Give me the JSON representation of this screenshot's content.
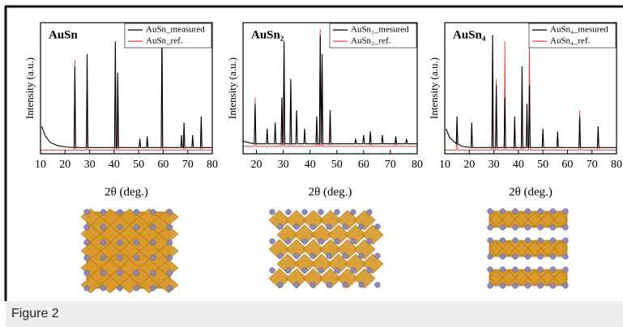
{
  "chart_data": [
    {
      "type": "line",
      "title": "AuSn",
      "x_label": "2θ (deg.)",
      "y_label": "Intensity (a.u.)",
      "xlim": [
        10,
        80
      ],
      "xticks": [
        10,
        20,
        30,
        40,
        50,
        60,
        70,
        80
      ],
      "ylim": [
        0,
        105
      ],
      "series": [
        {
          "name": "AuSn_measured",
          "color": "#000000",
          "x": [
            10.5,
            12,
            14,
            17,
            20,
            23.7,
            24,
            24.3,
            28.7,
            29,
            29.3,
            40.2,
            40.5,
            40.8,
            41.2,
            41.5,
            41.8,
            50.2,
            50.5,
            50.8,
            53.2,
            53.5,
            53.8,
            59.2,
            59.5,
            59.8,
            67.2,
            67.5,
            67.8,
            68.2,
            68.5,
            68.8,
            71.7,
            72,
            72.3,
            75.2,
            75.5,
            75.8,
            80
          ],
          "values": [
            22,
            14,
            9,
            6.5,
            5.5,
            5,
            70,
            5,
            5,
            80,
            5,
            5,
            90,
            5,
            5,
            65,
            5,
            5,
            12,
            5,
            5,
            14,
            5,
            5,
            100,
            5,
            5,
            15,
            5,
            5,
            25,
            5,
            5,
            15,
            5,
            5,
            30,
            5,
            5
          ]
        },
        {
          "name": "AuSn_ref.",
          "color": "#e8403a",
          "x": [
            10,
            23.7,
            24,
            24.3,
            28.7,
            29,
            29.3,
            40.2,
            40.5,
            40.8,
            41.2,
            41.5,
            41.8,
            59.2,
            59.5,
            59.8,
            68.2,
            68.5,
            68.8,
            75.2,
            75.5,
            75.8,
            80
          ],
          "values": [
            3,
            3,
            75,
            3,
            3,
            50,
            3,
            3,
            80,
            3,
            3,
            60,
            3,
            3,
            95,
            3,
            3,
            20,
            3,
            3,
            25,
            3,
            3
          ]
        }
      ]
    },
    {
      "type": "line",
      "title": "AuSn₂",
      "x_label": "2θ (deg.)",
      "y_label": "Intensity (a.u.)",
      "xlim": [
        15,
        80
      ],
      "xticks": [
        20,
        30,
        40,
        50,
        60,
        70,
        80
      ],
      "ylim": [
        0,
        105
      ],
      "series": [
        {
          "name": "AuSn₂_mesured",
          "color": "#000000",
          "x": [
            15,
            19.2,
            19.5,
            19.8,
            23.7,
            24,
            24.3,
            26.7,
            27,
            27.3,
            29.2,
            29.5,
            29.8,
            30.0,
            30.3,
            30.6,
            32.5,
            32.8,
            33.1,
            34.7,
            35,
            35.3,
            37.7,
            38,
            38.3,
            42.2,
            42.5,
            42.8,
            43.5,
            43.8,
            44.1,
            44.2,
            44.5,
            44.8,
            47.2,
            47.5,
            47.8,
            56.7,
            57,
            57.3,
            59.7,
            60,
            60.3,
            62.2,
            62.5,
            62.8,
            66.7,
            67,
            67.3,
            71.7,
            72,
            72.3,
            75.7,
            76,
            76.3,
            80
          ],
          "values": [
            10,
            8,
            40,
            8,
            8,
            20,
            8,
            8,
            25,
            8,
            8,
            45,
            8,
            8,
            90,
            8,
            8,
            60,
            8,
            8,
            35,
            8,
            8,
            20,
            8,
            8,
            30,
            8,
            8,
            95,
            8,
            8,
            80,
            8,
            8,
            35,
            8,
            8,
            12,
            8,
            8,
            15,
            8,
            8,
            18,
            8,
            8,
            15,
            8,
            8,
            14,
            8,
            8,
            12,
            8,
            8
          ]
        },
        {
          "name": "AuSn₂_ref.",
          "color": "#e8403a",
          "x": [
            15,
            19.2,
            19.5,
            19.8,
            29.2,
            29.5,
            29.8,
            30.0,
            30.3,
            30.6,
            32.5,
            32.8,
            33.1,
            42.2,
            42.5,
            42.8,
            43.5,
            43.8,
            44.1,
            44.2,
            44.5,
            44.8,
            47.2,
            47.5,
            47.8,
            62.2,
            62.5,
            62.8,
            71.7,
            72,
            72.3,
            80
          ],
          "values": [
            6,
            6,
            45,
            6,
            6,
            40,
            6,
            6,
            85,
            6,
            6,
            55,
            6,
            6,
            28,
            6,
            6,
            100,
            6,
            6,
            75,
            6,
            6,
            30,
            6,
            6,
            15,
            6,
            6,
            12,
            6,
            6
          ]
        }
      ]
    },
    {
      "type": "line",
      "title": "AuSn₄",
      "x_label": "2θ (deg.)",
      "y_label": "Intensity (a.u.)",
      "xlim": [
        10,
        80
      ],
      "xticks": [
        10,
        20,
        30,
        40,
        50,
        60,
        70,
        80
      ],
      "ylim": [
        0,
        105
      ],
      "series": [
        {
          "name": "AuSn₄_mesured",
          "color": "#000000",
          "x": [
            10.5,
            12,
            14.7,
            15,
            15.3,
            17,
            20.7,
            21,
            21.3,
            29.2,
            29.5,
            29.8,
            30.7,
            31,
            31.3,
            34.2,
            34.5,
            34.8,
            38.2,
            38.5,
            38.8,
            41.2,
            41.5,
            41.8,
            43.2,
            43.5,
            43.8,
            44.2,
            44.5,
            44.8,
            49.7,
            50,
            50.3,
            55.7,
            56,
            56.3,
            64.7,
            65,
            65.3,
            72.2,
            72.5,
            72.8,
            80
          ],
          "values": [
            20,
            13,
            8,
            30,
            8,
            6,
            5,
            25,
            5,
            5,
            95,
            5,
            5,
            55,
            5,
            5,
            45,
            5,
            5,
            30,
            5,
            5,
            70,
            5,
            5,
            40,
            5,
            5,
            55,
            5,
            5,
            20,
            5,
            5,
            18,
            5,
            5,
            30,
            5,
            5,
            22,
            5,
            5
          ]
        },
        {
          "name": "AuSn₄_ref.",
          "color": "#e8403a",
          "x": [
            10,
            14.7,
            15,
            15.3,
            29.2,
            29.5,
            29.8,
            30.7,
            31,
            31.3,
            34.2,
            34.5,
            34.8,
            38.2,
            38.5,
            38.8,
            41.2,
            41.5,
            41.8,
            44.2,
            44.5,
            44.8,
            64.7,
            65,
            65.3,
            72.2,
            72.5,
            72.8,
            80
          ],
          "values": [
            3,
            3,
            25,
            3,
            3,
            50,
            3,
            3,
            60,
            3,
            3,
            90,
            3,
            3,
            25,
            3,
            3,
            55,
            3,
            3,
            95,
            3,
            3,
            35,
            3,
            3,
            20,
            3,
            3
          ]
        }
      ]
    }
  ],
  "caption": "Figure 2"
}
